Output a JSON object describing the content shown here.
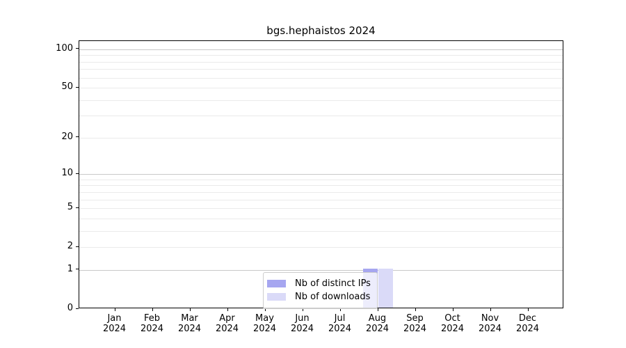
{
  "title": "bgs.hephaistos 2024",
  "chart_data": {
    "type": "bar",
    "title": "bgs.hephaistos 2024",
    "x_months": [
      "Jan",
      "Feb",
      "Mar",
      "Apr",
      "May",
      "Jun",
      "Jul",
      "Aug",
      "Sep",
      "Oct",
      "Nov",
      "Dec"
    ],
    "x_year": "2024",
    "series": [
      {
        "name": "Nb of distinct IPs",
        "color": "#a6a6f0",
        "values": [
          0,
          0,
          0,
          0,
          0,
          0,
          0,
          1,
          0,
          0,
          0,
          0
        ]
      },
      {
        "name": "Nb of downloads",
        "color": "#dadaf8",
        "values": [
          0,
          0,
          0,
          0,
          0,
          0,
          0,
          1,
          0,
          0,
          0,
          0
        ]
      }
    ],
    "yscale": "log1p",
    "ylim": [
      0,
      116
    ],
    "yticks": [
      0,
      1,
      2,
      5,
      10,
      20,
      50,
      100
    ],
    "ytick_labels": [
      "0",
      "1",
      "2",
      "5",
      "10",
      "20",
      "50",
      "100"
    ],
    "grid_major": [
      1,
      10,
      100
    ],
    "grid_minor": [
      2,
      3,
      4,
      5,
      6,
      7,
      8,
      9,
      20,
      30,
      40,
      50,
      60,
      70,
      80,
      90
    ],
    "legend": {
      "position": "lower center",
      "labels": [
        "Nb of distinct IPs",
        "Nb of downloads"
      ]
    },
    "colors": {
      "bar_distinct_ips": "#a6a6f0",
      "bar_downloads": "#dadaf8",
      "grid_major": "#c8c8c8",
      "grid_minor": "#eaeaea",
      "spine": "#000000",
      "legend_border": "#cccccc"
    }
  }
}
